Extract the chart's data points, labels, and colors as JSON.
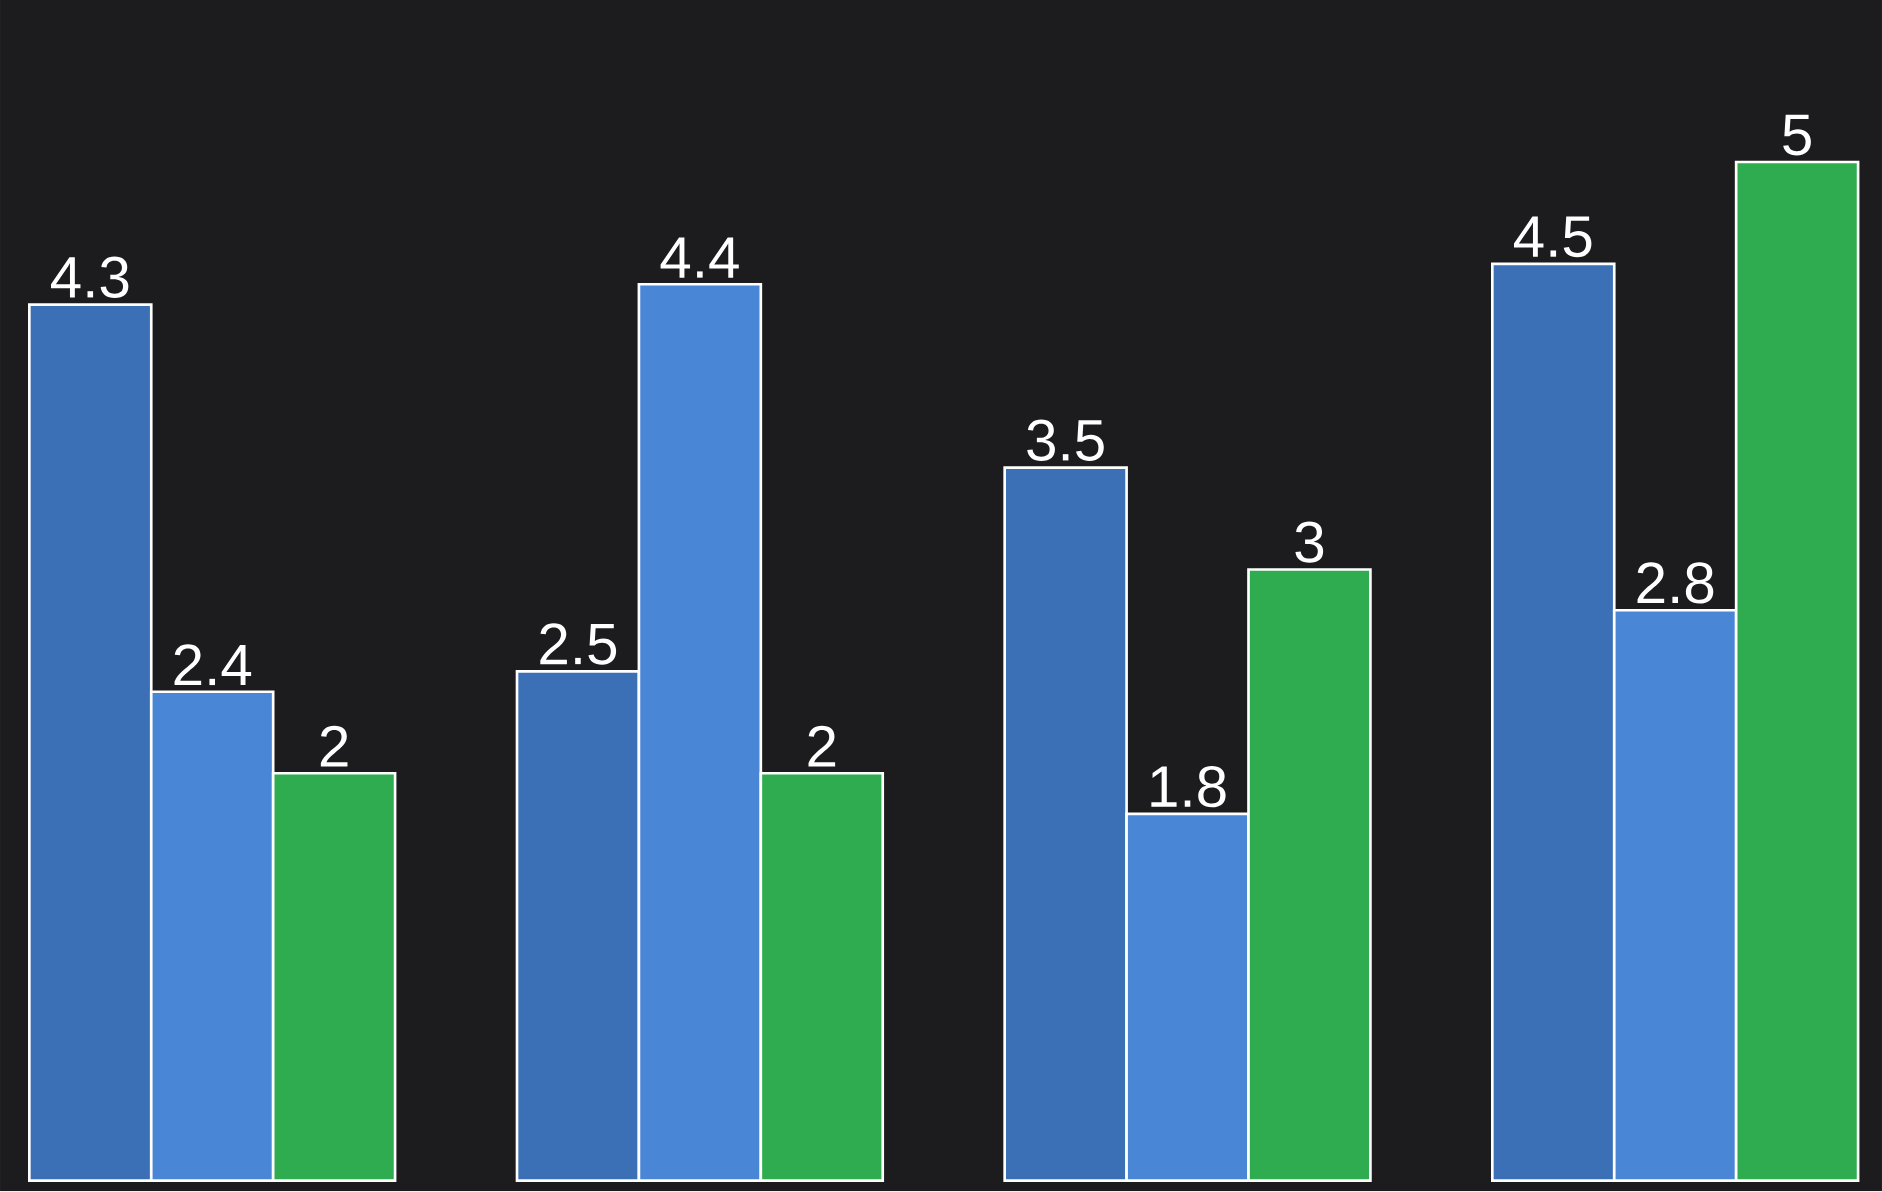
{
  "chart_data": {
    "type": "bar",
    "categories": [
      null,
      null,
      null,
      null
    ],
    "data_labels": true,
    "series": [
      {
        "color": "#3b6fb6",
        "values": [
          4.3,
          2.5,
          3.5,
          4.5
        ]
      },
      {
        "color": "#4a86d6",
        "values": [
          2.4,
          4.4,
          1.8,
          2.8
        ]
      },
      {
        "color": "#2fac4f",
        "values": [
          2,
          2,
          3,
          5
        ]
      }
    ]
  }
}
